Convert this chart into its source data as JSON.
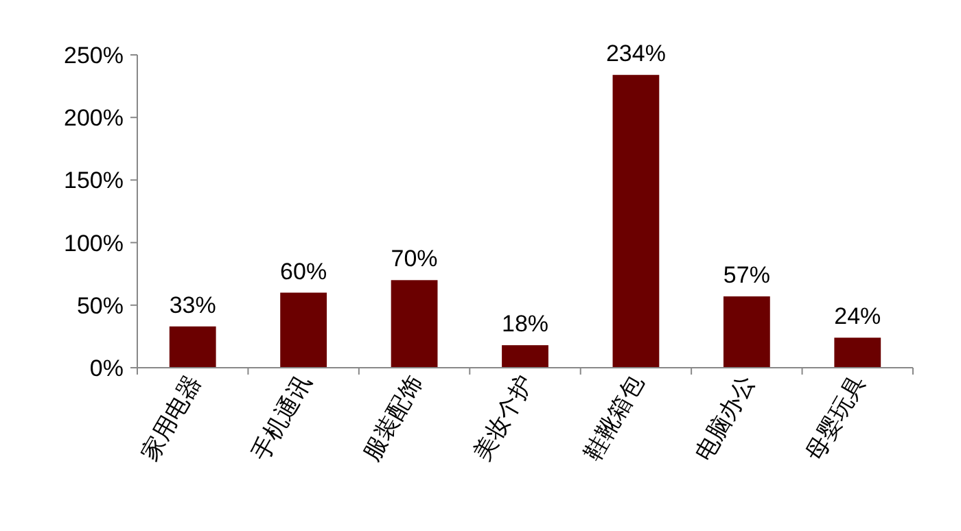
{
  "chart_data": {
    "type": "bar",
    "categories": [
      "家用电器",
      "手机通讯",
      "服装配饰",
      "美妆个护",
      "鞋靴箱包",
      "电脑办公",
      "母婴玩具"
    ],
    "values": [
      33,
      60,
      70,
      18,
      234,
      57,
      24
    ],
    "value_labels": [
      "33%",
      "60%",
      "70%",
      "18%",
      "234%",
      "57%",
      "24%"
    ],
    "color": "#6b0000",
    "ylim": [
      0,
      250
    ],
    "yticks": [
      {
        "value": 0,
        "label": "0%"
      },
      {
        "value": 50,
        "label": "50%"
      },
      {
        "value": 100,
        "label": "100%"
      },
      {
        "value": 150,
        "label": "150%"
      },
      {
        "value": 200,
        "label": "200%"
      },
      {
        "value": 250,
        "label": "250%"
      }
    ]
  }
}
